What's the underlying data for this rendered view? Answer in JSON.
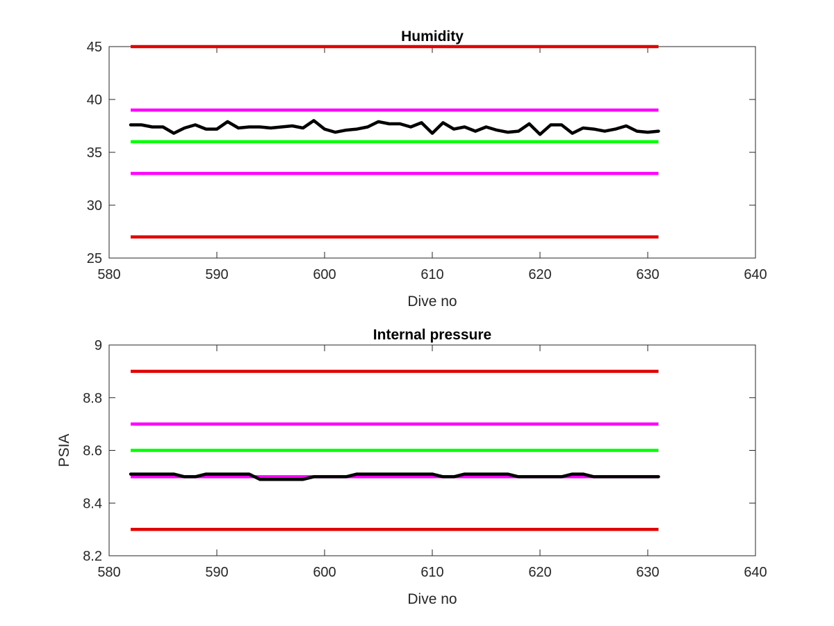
{
  "chart_data": [
    {
      "type": "line",
      "title": "Humidity",
      "xlabel": "Dive no",
      "ylabel": "",
      "xlim": [
        580,
        640
      ],
      "ylim": [
        25,
        45
      ],
      "xticks": [
        580,
        590,
        600,
        610,
        620,
        630,
        640
      ],
      "yticks": [
        25,
        30,
        35,
        40,
        45
      ],
      "grid": false,
      "reference_lines": [
        {
          "y": 45,
          "x_range": [
            582,
            631
          ],
          "color": "#e00000"
        },
        {
          "y": 39,
          "x_range": [
            582,
            631
          ],
          "color": "#ff00ff"
        },
        {
          "y": 36,
          "x_range": [
            582,
            631
          ],
          "color": "#00ff00"
        },
        {
          "y": 33,
          "x_range": [
            582,
            631
          ],
          "color": "#ff00ff"
        },
        {
          "y": 27,
          "x_range": [
            582,
            631
          ],
          "color": "#e00000"
        }
      ],
      "series": [
        {
          "color": "#000000",
          "x": [
            582,
            583,
            584,
            585,
            586,
            587,
            588,
            589,
            590,
            591,
            592,
            593,
            594,
            595,
            596,
            597,
            598,
            599,
            600,
            601,
            602,
            603,
            604,
            605,
            606,
            607,
            608,
            609,
            610,
            611,
            612,
            613,
            614,
            615,
            616,
            617,
            618,
            619,
            620,
            621,
            622,
            623,
            624,
            625,
            626,
            627,
            628,
            629,
            630,
            631
          ],
          "y": [
            37.6,
            37.6,
            37.4,
            37.4,
            36.8,
            37.3,
            37.6,
            37.2,
            37.2,
            37.9,
            37.3,
            37.4,
            37.4,
            37.3,
            37.4,
            37.5,
            37.3,
            38.0,
            37.2,
            36.9,
            37.1,
            37.2,
            37.4,
            37.9,
            37.7,
            37.7,
            37.4,
            37.8,
            36.8,
            37.8,
            37.2,
            37.4,
            37.0,
            37.4,
            37.1,
            36.9,
            37.0,
            37.7,
            36.7,
            37.6,
            37.6,
            36.8,
            37.3,
            37.2,
            37.0,
            37.2,
            37.5,
            37.0,
            36.9,
            37.0
          ]
        }
      ]
    },
    {
      "type": "line",
      "title": "Internal pressure",
      "xlabel": "Dive no",
      "ylabel": "PSIA",
      "xlim": [
        580,
        640
      ],
      "ylim": [
        8.2,
        9
      ],
      "xticks": [
        580,
        590,
        600,
        610,
        620,
        630,
        640
      ],
      "yticks": [
        8.2,
        8.4,
        8.6,
        8.8,
        9
      ],
      "grid": false,
      "reference_lines": [
        {
          "y": 8.9,
          "x_range": [
            582,
            631
          ],
          "color": "#e00000"
        },
        {
          "y": 8.7,
          "x_range": [
            582,
            631
          ],
          "color": "#ff00ff"
        },
        {
          "y": 8.6,
          "x_range": [
            582,
            631
          ],
          "color": "#00ff00"
        },
        {
          "y": 8.5,
          "x_range": [
            582,
            631
          ],
          "color": "#ff00ff"
        },
        {
          "y": 8.3,
          "x_range": [
            582,
            631
          ],
          "color": "#e00000"
        }
      ],
      "series": [
        {
          "color": "#000000",
          "x": [
            582,
            583,
            584,
            585,
            586,
            587,
            588,
            589,
            590,
            591,
            592,
            593,
            594,
            595,
            596,
            597,
            598,
            599,
            600,
            601,
            602,
            603,
            604,
            605,
            606,
            607,
            608,
            609,
            610,
            611,
            612,
            613,
            614,
            615,
            616,
            617,
            618,
            619,
            620,
            621,
            622,
            623,
            624,
            625,
            626,
            627,
            628,
            629,
            630,
            631
          ],
          "y": [
            8.51,
            8.51,
            8.51,
            8.51,
            8.51,
            8.5,
            8.5,
            8.51,
            8.51,
            8.51,
            8.51,
            8.51,
            8.49,
            8.49,
            8.49,
            8.49,
            8.49,
            8.5,
            8.5,
            8.5,
            8.5,
            8.51,
            8.51,
            8.51,
            8.51,
            8.51,
            8.51,
            8.51,
            8.51,
            8.5,
            8.5,
            8.51,
            8.51,
            8.51,
            8.51,
            8.51,
            8.5,
            8.5,
            8.5,
            8.5,
            8.5,
            8.51,
            8.51,
            8.5,
            8.5,
            8.5,
            8.5,
            8.5,
            8.5,
            8.5
          ]
        }
      ]
    }
  ]
}
